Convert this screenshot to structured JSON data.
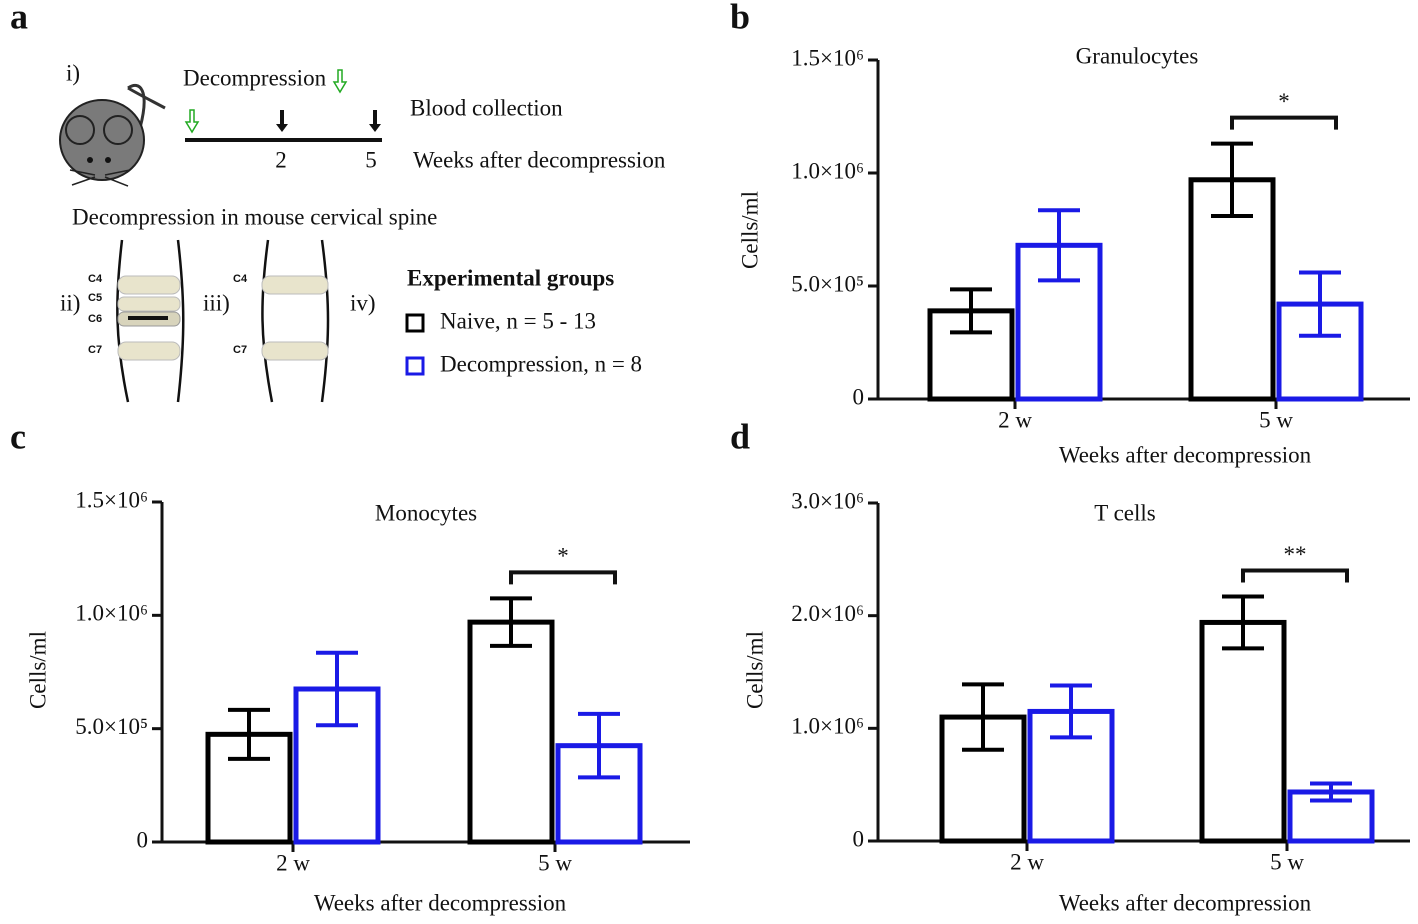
{
  "panel_a": {
    "panel_label": "a",
    "step_label": "i)",
    "decompression": "Decompression",
    "blood_collection": "Blood collection",
    "week_ticks": [
      "2",
      "5"
    ],
    "timeline_label": "Weeks after decompression",
    "spine_title": "Decompression in mouse cervical spine",
    "spine_labels": [
      "ii)",
      "iii)",
      "iv)"
    ],
    "vertebrae_ii": [
      "C4",
      "C5",
      "C6",
      "C7"
    ],
    "vertebrae_iii": [
      "C4",
      "C7"
    ],
    "legend_title": "Experimental groups"
  },
  "chart_data": [
    {
      "type": "bar",
      "panel_label": "b",
      "title": "Granulocytes",
      "y_label": "Cells/ml",
      "x_label": "Weeks after decompression",
      "categories": [
        "2 w",
        "5 w"
      ],
      "series": [
        {
          "name": "Naive, n = 5 - 13",
          "color": "#000000",
          "values": [
            390000,
            970000
          ],
          "errors": [
            95000,
            160000
          ]
        },
        {
          "name": "Decompression, n = 8",
          "color": "#1a1ae6",
          "values": [
            680000,
            420000
          ],
          "errors": [
            155000,
            140000
          ]
        }
      ],
      "ylim": [
        0,
        1500000
      ],
      "yticks": [
        0,
        {
          "value": 500000,
          "label": "5.0×10⁵"
        },
        {
          "value": 1000000,
          "label": "1.0×10⁶"
        },
        {
          "value": 1500000,
          "label": "1.5×10⁶"
        }
      ],
      "significance": {
        "category": "5 w",
        "label": "*"
      }
    },
    {
      "type": "bar",
      "panel_label": "c",
      "title": "Monocytes",
      "y_label": "Cells/ml",
      "x_label": "Weeks after decompression",
      "categories": [
        "2 w",
        "5 w"
      ],
      "series": [
        {
          "color": "#000000",
          "values": [
            475000,
            970000
          ],
          "errors": [
            108000,
            105000
          ]
        },
        {
          "color": "#1a1ae6",
          "values": [
            675000,
            425000
          ],
          "errors": [
            160000,
            140000
          ]
        }
      ],
      "ylim": [
        0,
        1500000
      ],
      "yticks": [
        0,
        {
          "value": 500000,
          "label": "5.0×10⁵"
        },
        {
          "value": 1000000,
          "label": "1.0×10⁶"
        },
        {
          "value": 1500000,
          "label": "1.5×10⁶"
        }
      ],
      "significance": {
        "category": "5 w",
        "label": "*"
      }
    },
    {
      "type": "bar",
      "panel_label": "d",
      "title": "T cells",
      "y_label": "Cells/ml",
      "x_label": "Weeks after decompression",
      "categories": [
        "2 w",
        "5 w"
      ],
      "series": [
        {
          "color": "#000000",
          "values": [
            1100000,
            1940000
          ],
          "errors": [
            290000,
            230000
          ]
        },
        {
          "color": "#1a1ae6",
          "values": [
            1150000,
            435000
          ],
          "errors": [
            230000,
            75000
          ]
        }
      ],
      "ylim": [
        0,
        3000000
      ],
      "yticks": [
        0,
        {
          "value": 1000000,
          "label": "1.0×10⁶"
        },
        {
          "value": 2000000,
          "label": "2.0×10⁶"
        },
        {
          "value": 3000000,
          "label": "3.0×10⁶"
        }
      ],
      "significance": {
        "category": "5 w",
        "label": "**"
      }
    }
  ]
}
